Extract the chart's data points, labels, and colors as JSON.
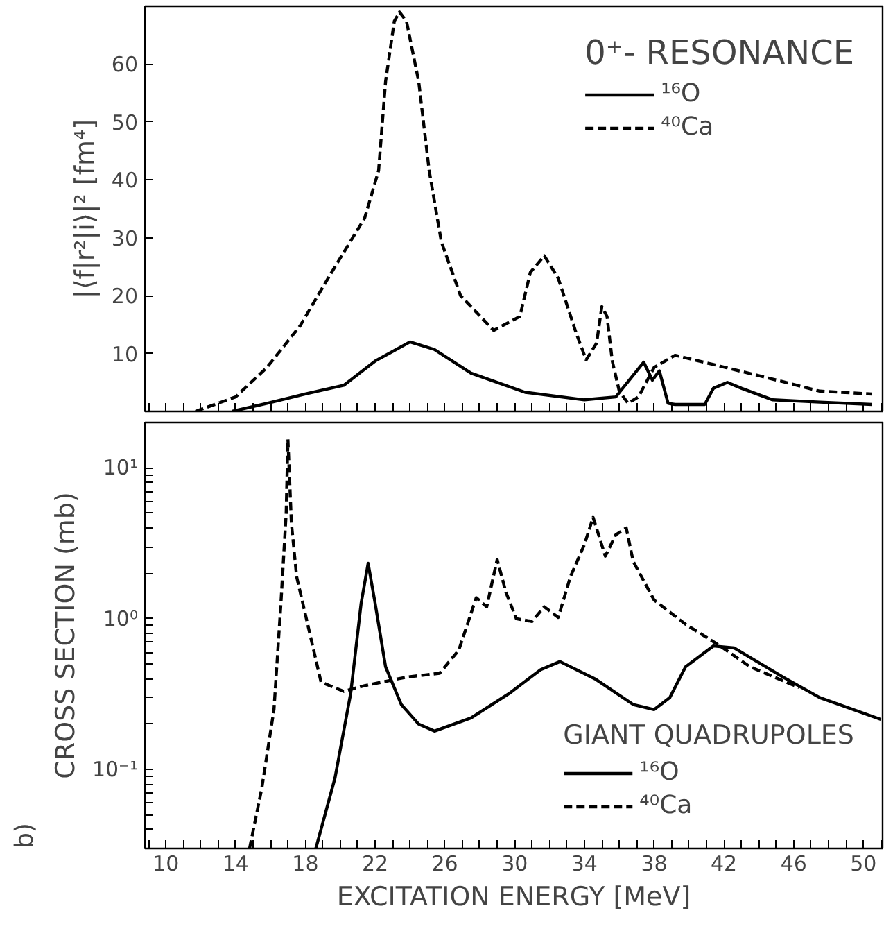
{
  "chart_data": [
    {
      "type": "line",
      "ylabel": "|⟨f|r²|i⟩|² [fm⁴]",
      "legend_title": "0⁺- RESONANCE",
      "legend": "top right",
      "tick_labels": "y",
      "xlim": [
        8.8,
        51.1
      ],
      "ylim": [
        0,
        70
      ],
      "xticks": [
        {
          "value": 9,
          "label": null
        },
        {
          "value": 10,
          "label": null
        },
        {
          "value": 11,
          "label": null
        },
        {
          "value": 12,
          "label": null
        },
        {
          "value": 13,
          "label": null
        },
        {
          "value": 14,
          "label": null
        },
        {
          "value": 15,
          "label": null
        },
        {
          "value": 16,
          "label": null
        },
        {
          "value": 17,
          "label": null
        },
        {
          "value": 18,
          "label": null
        },
        {
          "value": 19,
          "label": null
        },
        {
          "value": 20,
          "label": null
        },
        {
          "value": 21,
          "label": null
        },
        {
          "value": 22,
          "label": null
        },
        {
          "value": 23,
          "label": null
        },
        {
          "value": 24,
          "label": null
        },
        {
          "value": 25,
          "label": null
        },
        {
          "value": 26,
          "label": null
        },
        {
          "value": 27,
          "label": null
        },
        {
          "value": 28,
          "label": null
        },
        {
          "value": 29,
          "label": null
        },
        {
          "value": 30,
          "label": null
        },
        {
          "value": 31,
          "label": null
        },
        {
          "value": 32,
          "label": null
        },
        {
          "value": 33,
          "label": null
        },
        {
          "value": 34,
          "label": null
        },
        {
          "value": 35,
          "label": null
        },
        {
          "value": 36,
          "label": null
        },
        {
          "value": 37,
          "label": null
        },
        {
          "value": 38,
          "label": null
        },
        {
          "value": 39,
          "label": null
        },
        {
          "value": 40,
          "label": null
        },
        {
          "value": 41,
          "label": null
        },
        {
          "value": 42,
          "label": null
        },
        {
          "value": 43,
          "label": null
        },
        {
          "value": 44,
          "label": null
        },
        {
          "value": 45,
          "label": null
        },
        {
          "value": 46,
          "label": null
        },
        {
          "value": 47,
          "label": null
        },
        {
          "value": 48,
          "label": null
        },
        {
          "value": 49,
          "label": null
        },
        {
          "value": 50,
          "label": null
        },
        {
          "value": 51,
          "label": null
        }
      ],
      "yticks": [
        10,
        20,
        30,
        40,
        50,
        60
      ],
      "series": [
        {
          "name": "¹⁶O",
          "color": "#000000",
          "line_style": "solid",
          "x": [
            13.8,
            15.8,
            18.0,
            20.2,
            22.0,
            24.0,
            25.4,
            27.5,
            30.6,
            34.0,
            35.8,
            37.4,
            37.9,
            38.3,
            38.8,
            39.2,
            40.9,
            41.4,
            42.2,
            43.0,
            44.8,
            47.5,
            50.5
          ],
          "values": [
            0,
            1.4,
            3.0,
            4.5,
            8.7,
            12.0,
            10.7,
            6.6,
            3.3,
            2.0,
            2.5,
            8.5,
            5.4,
            7.0,
            1.4,
            1.2,
            1.2,
            4.0,
            5.0,
            4.0,
            2.0,
            1.6,
            1.2
          ]
        },
        {
          "name": "⁴⁰Ca",
          "color": "#000000",
          "line_style": "dashed",
          "x": [
            11.7,
            14.0,
            15.8,
            17.7,
            19.5,
            21.4,
            22.2,
            22.6,
            23.1,
            23.4,
            23.8,
            24.5,
            25.1,
            25.8,
            26.9,
            28.8,
            30.3,
            30.9,
            31.7,
            32.5,
            33.5,
            34.1,
            34.7,
            35.0,
            35.3,
            35.6,
            36.0,
            36.5,
            37.1,
            38.0,
            39.2,
            41.4,
            44.5,
            47.5,
            50.5
          ],
          "values": [
            0,
            2.5,
            7.6,
            14.8,
            24,
            33.4,
            41.6,
            57,
            67.4,
            69,
            67.4,
            57,
            41.6,
            29.3,
            20,
            14.0,
            16.4,
            24,
            26.9,
            23,
            13.8,
            8.9,
            11.8,
            18.1,
            16.4,
            8.7,
            3.5,
            1.4,
            2.5,
            7.6,
            9.7,
            8.1,
            5.8,
            3.5,
            3.0
          ]
        }
      ]
    },
    {
      "type": "line",
      "xlabel": "EXCITATION ENERGY [MeV]",
      "ylabel": "CROSS SECTION (mb)",
      "legend_title": "GIANT QUADRUPOLES",
      "legend": "bottom right",
      "log": "y",
      "annotations": [
        "b)"
      ],
      "xlim": [
        8.8,
        51.1
      ],
      "ylim": [
        0.03,
        20
      ],
      "xticks": [
        {
          "value": 9,
          "label": null
        },
        10,
        {
          "value": 11,
          "label": null
        },
        {
          "value": 12,
          "label": null
        },
        {
          "value": 13,
          "label": null
        },
        14,
        {
          "value": 15,
          "label": null
        },
        {
          "value": 16,
          "label": null
        },
        {
          "value": 17,
          "label": null
        },
        18,
        {
          "value": 19,
          "label": null
        },
        {
          "value": 20,
          "label": null
        },
        {
          "value": 21,
          "label": null
        },
        22,
        {
          "value": 23,
          "label": null
        },
        {
          "value": 24,
          "label": null
        },
        {
          "value": 25,
          "label": null
        },
        26,
        {
          "value": 27,
          "label": null
        },
        {
          "value": 28,
          "label": null
        },
        {
          "value": 29,
          "label": null
        },
        30,
        {
          "value": 31,
          "label": null
        },
        {
          "value": 32,
          "label": null
        },
        {
          "value": 33,
          "label": null
        },
        34,
        {
          "value": 35,
          "label": null
        },
        {
          "value": 36,
          "label": null
        },
        {
          "value": 37,
          "label": null
        },
        38,
        {
          "value": 39,
          "label": null
        },
        {
          "value": 40,
          "label": null
        },
        {
          "value": 41,
          "label": null
        },
        42,
        {
          "value": 43,
          "label": null
        },
        {
          "value": 44,
          "label": null
        },
        {
          "value": 45,
          "label": null
        },
        46,
        {
          "value": 47,
          "label": null
        },
        {
          "value": 48,
          "label": null
        },
        {
          "value": 49,
          "label": null
        },
        50,
        {
          "value": 51,
          "label": null
        }
      ],
      "yticks": [
        {
          "value": 0.04,
          "label": null
        },
        {
          "value": 0.05,
          "label": null
        },
        {
          "value": 0.06,
          "label": null
        },
        {
          "value": 0.07,
          "label": null
        },
        {
          "value": 0.08,
          "label": null
        },
        {
          "value": 0.09,
          "label": null
        },
        {
          "value": 0.1,
          "label": "10⁻¹"
        },
        {
          "value": 0.2,
          "label": null
        },
        {
          "value": 0.3,
          "label": null
        },
        {
          "value": 0.4,
          "label": null
        },
        {
          "value": 0.5,
          "label": null
        },
        {
          "value": 0.6,
          "label": null
        },
        {
          "value": 0.7,
          "label": null
        },
        {
          "value": 0.8,
          "label": null
        },
        {
          "value": 0.9,
          "label": null
        },
        {
          "value": 1,
          "label": "10⁰"
        },
        {
          "value": 2,
          "label": null
        },
        {
          "value": 3,
          "label": null
        },
        {
          "value": 4,
          "label": null
        },
        {
          "value": 5,
          "label": null
        },
        {
          "value": 6,
          "label": null
        },
        {
          "value": 7,
          "label": null
        },
        {
          "value": 8,
          "label": null
        },
        {
          "value": 9,
          "label": null
        },
        {
          "value": 10,
          "label": "10¹"
        },
        {
          "value": 20,
          "label": null
        }
      ],
      "series": [
        {
          "name": "¹⁶O",
          "color": "#000000",
          "line_style": "solid",
          "x": [
            18.6,
            19.7,
            20.6,
            21.2,
            21.6,
            22.0,
            22.6,
            23.5,
            24.5,
            25.4,
            27.5,
            29.7,
            31.5,
            32.6,
            34.6,
            36.8,
            38.0,
            38.9,
            39.8,
            41.4,
            42.6,
            45.4,
            47.5,
            51.0
          ],
          "values": [
            0.03,
            0.088,
            0.32,
            1.27,
            2.33,
            1.27,
            0.48,
            0.27,
            0.2,
            0.18,
            0.22,
            0.32,
            0.46,
            0.52,
            0.4,
            0.27,
            0.25,
            0.3,
            0.48,
            0.66,
            0.64,
            0.41,
            0.3,
            0.215
          ]
        },
        {
          "name": "⁴⁰Ca",
          "color": "#000000",
          "line_style": "dashed",
          "x": [
            14.8,
            15.5,
            16.2,
            16.6,
            16.9,
            17.0,
            17.2,
            17.5,
            18.2,
            18.9,
            20.2,
            21.4,
            23.8,
            25.7,
            26.8,
            27.8,
            28.4,
            29.0,
            29.5,
            30.1,
            31.0,
            31.7,
            32.5,
            33.2,
            34.0,
            34.5,
            35.2,
            35.8,
            36.4,
            36.8,
            38.0,
            39.8,
            41.7,
            43.5,
            46.3
          ],
          "values": [
            0.03,
            0.075,
            0.25,
            1.27,
            5.0,
            15.5,
            4.3,
            1.9,
            0.85,
            0.38,
            0.33,
            0.36,
            0.41,
            0.435,
            0.62,
            1.38,
            1.2,
            2.47,
            1.5,
            1.0,
            0.96,
            1.2,
            1.02,
            1.9,
            3.1,
            4.7,
            2.6,
            3.6,
            4.0,
            2.4,
            1.33,
            0.92,
            0.67,
            0.48,
            0.35
          ]
        }
      ]
    }
  ]
}
